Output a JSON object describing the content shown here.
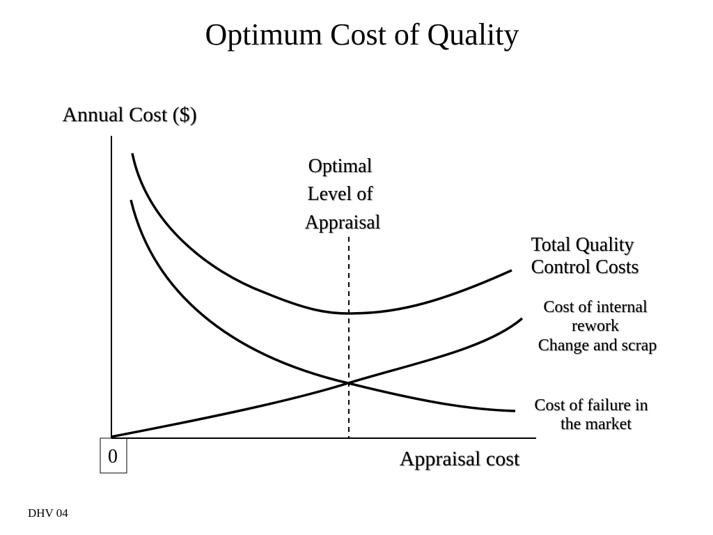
{
  "title": "Optimum Cost of Quality",
  "axes": {
    "y_label": "Annual Cost ($)",
    "x_label": "Appraisal cost",
    "origin": "0"
  },
  "annotations": {
    "optimal": {
      "lines": [
        "Optimal",
        "Level of",
        "Appraisal"
      ]
    },
    "total": {
      "lines": [
        "Total Quality",
        "Control Costs"
      ]
    },
    "internal": {
      "lines": [
        "Cost of internal",
        "rework",
        "Change and scrap"
      ]
    },
    "failure": {
      "lines": [
        "Cost of failure in",
        "the market"
      ]
    }
  },
  "footer": "DHV 04"
}
